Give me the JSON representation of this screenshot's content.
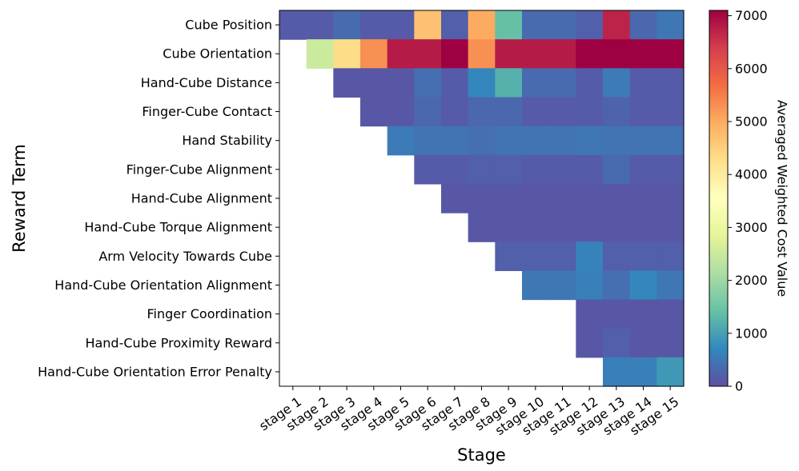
{
  "chart_data": {
    "type": "heatmap",
    "title": "",
    "xlabel": "Stage",
    "ylabel": "Reward Term",
    "colorbar_label": "Averaged Weighted Cost Value",
    "colormap": "Spectral_r",
    "color_range": [
      0,
      7100
    ],
    "colorbar_ticks": [
      0,
      1000,
      2000,
      3000,
      4000,
      5000,
      6000,
      7000
    ],
    "categories_x": [
      "stage 1",
      "stage 2",
      "stage 3",
      "stage 4",
      "stage 5",
      "stage 6",
      "stage 7",
      "stage 8",
      "stage 9",
      "stage 10",
      "stage 11",
      "stage 12",
      "stage 13",
      "stage 14",
      "stage 15"
    ],
    "categories_y": [
      "Cube Position",
      "Cube Orientation",
      "Hand-Cube Distance",
      "Finger-Cube Contact",
      "Hand Stability",
      "Finger-Cube Alignment",
      "Hand-Cube Alignment",
      "Hand-Cube Torque Alignment",
      "Arm Velocity Towards Cube",
      "Hand-Cube Orientation Alignment",
      "Finger Coordination",
      "Hand-Cube Proximity Reward",
      "Hand-Cube Orientation Error Penalty"
    ],
    "values": [
      [
        150,
        150,
        350,
        150,
        150,
        4700,
        200,
        5000,
        1400,
        350,
        350,
        200,
        6700,
        300,
        500
      ],
      [
        null,
        2500,
        4300,
        5300,
        6800,
        6800,
        7100,
        5300,
        6800,
        6800,
        6800,
        7100,
        7100,
        7100,
        7100
      ],
      [
        null,
        null,
        100,
        100,
        100,
        400,
        150,
        700,
        1200,
        350,
        350,
        150,
        550,
        150,
        150
      ],
      [
        null,
        null,
        null,
        100,
        100,
        300,
        150,
        300,
        300,
        150,
        150,
        150,
        250,
        150,
        150
      ],
      [
        null,
        null,
        null,
        null,
        550,
        450,
        450,
        400,
        450,
        450,
        450,
        500,
        450,
        450,
        450
      ],
      [
        null,
        null,
        null,
        null,
        null,
        150,
        150,
        200,
        200,
        150,
        150,
        150,
        350,
        150,
        150
      ],
      [
        null,
        null,
        null,
        null,
        null,
        null,
        100,
        100,
        100,
        100,
        100,
        100,
        100,
        100,
        100
      ],
      [
        null,
        null,
        null,
        null,
        null,
        null,
        null,
        100,
        100,
        100,
        100,
        100,
        100,
        100,
        100
      ],
      [
        null,
        null,
        null,
        null,
        null,
        null,
        null,
        null,
        200,
        200,
        200,
        650,
        200,
        200,
        200
      ],
      [
        null,
        null,
        null,
        null,
        null,
        null,
        null,
        null,
        null,
        500,
        500,
        600,
        400,
        700,
        500
      ],
      [
        null,
        null,
        null,
        null,
        null,
        null,
        null,
        null,
        null,
        null,
        null,
        100,
        100,
        100,
        100
      ],
      [
        null,
        null,
        null,
        null,
        null,
        null,
        null,
        null,
        null,
        null,
        null,
        100,
        200,
        100,
        100
      ],
      [
        null,
        null,
        null,
        null,
        null,
        null,
        null,
        null,
        null,
        null,
        null,
        null,
        600,
        600,
        900
      ]
    ]
  }
}
